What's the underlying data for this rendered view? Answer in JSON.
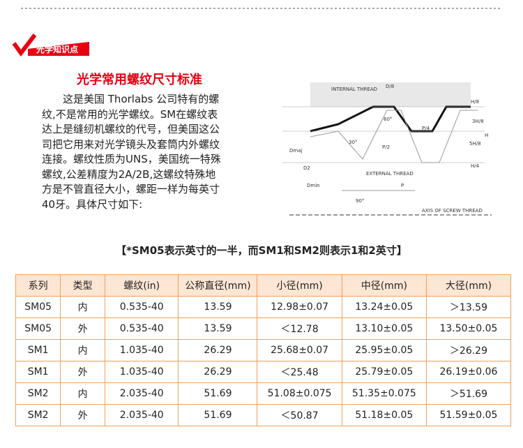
{
  "badge": "光学知识点",
  "title": "光学常用螺纹尺寸标准",
  "intro": {
    "lines": [
      "这是美国 Thorlabs 公司特有的螺",
      "纹,不是常用的光学螺纹。SM在螺纹表",
      "达上是缝纫机螺纹的代号，但美国这公",
      "司把它用来对光学镜头及套筒内外螺纹",
      "连接。螺纹性质为UNS，美国统一特殊",
      "螺纹,公差精度为2A/2B,这螺纹特殊地",
      "方是不管直径大小，螺距一样为每英寸",
      "40牙。具体尺寸如下:"
    ]
  },
  "diagram": {
    "labels": [
      "INTERNAL THREAD",
      "D/8",
      "60°",
      "H/8",
      "3H/8",
      "P/4",
      "5H/8",
      "H",
      "H/4",
      "30°",
      "P/2",
      "EXTERNAL THREAD",
      "P",
      "90°",
      "AXIS OF SCREW THREAD",
      "Dmaj",
      "D2",
      "Dmin"
    ]
  },
  "note": "【*SM05表示英寸的一半，而SM1和SM2则表示1和2英寸】",
  "table": {
    "header": [
      "系列",
      "类型",
      "螺纹(in)",
      "公称直径(mm)",
      "小径(mm)",
      "中径(mm)",
      "大径(mm)"
    ],
    "rows": [
      [
        "SM05",
        "内",
        "0.535-40",
        "13.59",
        "12.98±0.07",
        "13.24±0.05",
        "＞13.59"
      ],
      [
        "SM05",
        "外",
        "0.535-40",
        "13.59",
        "＜12.78",
        "13.10±0.05",
        "13.50±0.05"
      ],
      [
        "SM1",
        "内",
        "1.035-40",
        "26.29",
        "25.68±0.07",
        "25.95±0.05",
        "＞26.29"
      ],
      [
        "SM1",
        "外",
        "1.035-40",
        "26.29",
        "＜25.48",
        "25.79±0.05",
        "26.19±0.06"
      ],
      [
        "SM2",
        "内",
        "2.035-40",
        "51.69",
        "51.08±0.075",
        "51.35±0.075",
        "＞51.69"
      ],
      [
        "SM2",
        "外",
        "2.035-40",
        "51.69",
        "＜50.87",
        "51.18±0.05",
        "51.59±0.05"
      ]
    ]
  }
}
